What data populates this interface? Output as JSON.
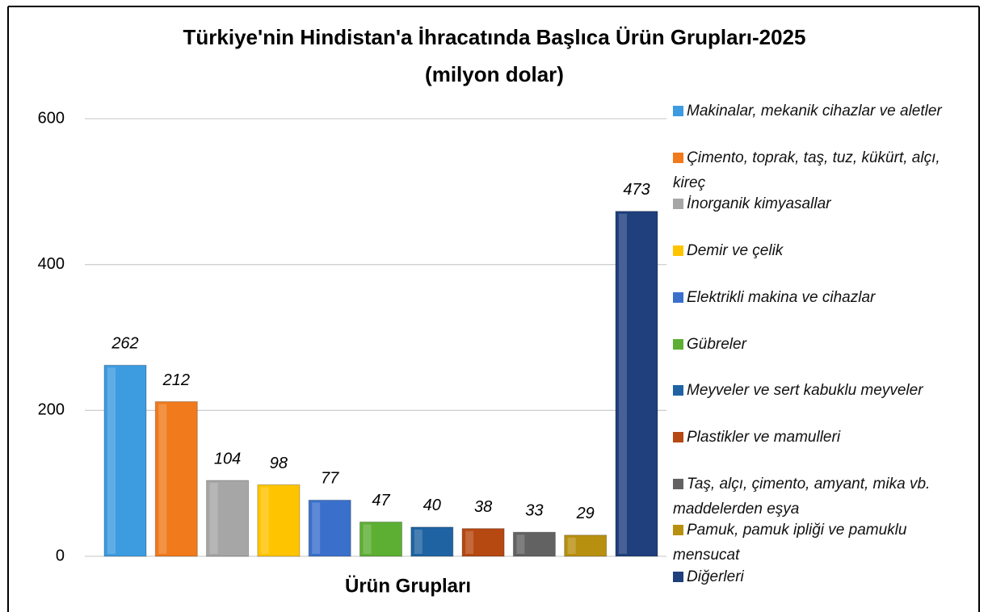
{
  "chart_data": {
    "type": "bar",
    "title": "Türkiye'nin Hindistan'a İhracatında Başlıca Ürün Grupları-2025",
    "subtitle": "(milyon dolar)",
    "x_label": "Ürün Grupları",
    "categories": [
      "Makinalar, mekanik cihazlar ve aletler",
      "Çimento, toprak, taş, tuz, kükürt, alçı, kireç",
      "İnorganik kimyasallar",
      "Demir ve çelik",
      "Elektrikli makina ve cihazlar",
      "Gübreler",
      "Meyveler ve sert kabuklu meyveler",
      "Plastikler ve mamulleri",
      "Taş, alçı, çimento, amyant, mika vb. maddelerden eşya",
      "Pamuk, pamuk ipliği ve pamuklu mensucat",
      "Diğerleri"
    ],
    "values": [
      262,
      212,
      104,
      98,
      77,
      47,
      40,
      38,
      33,
      29,
      473
    ],
    "colors": [
      "#3d9be0",
      "#f07a1c",
      "#a6a6a6",
      "#ffc400",
      "#3a70cc",
      "#5daf34",
      "#1f63a3",
      "#b64812",
      "#626262",
      "#b89010",
      "#1f3f7d"
    ],
    "ylim": [
      0,
      600
    ],
    "yticks": [
      0,
      200,
      400,
      600
    ],
    "grid": true,
    "legend": "right"
  }
}
